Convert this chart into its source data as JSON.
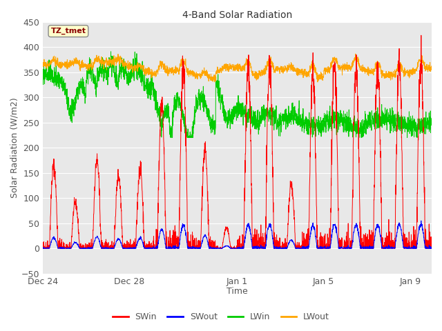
{
  "title": "4-Band Solar Radiation",
  "xlabel": "Time",
  "ylabel": "Solar Radiation (W/m2)",
  "ylim": [
    -50,
    450
  ],
  "yticks": [
    -50,
    0,
    50,
    100,
    150,
    200,
    250,
    300,
    350,
    400,
    450
  ],
  "bg_color": "#e8e8e8",
  "fig_color": "#ffffff",
  "annotation_text": "TZ_tmet",
  "annotation_color": "#8b0000",
  "annotation_bg": "#ffffcc",
  "legend_entries": [
    "SWin",
    "SWout",
    "LWin",
    "LWout"
  ],
  "line_colors": [
    "#ff0000",
    "#0000ff",
    "#00cc00",
    "#ffa500"
  ],
  "x_tick_labels": [
    "Dec 24",
    "Dec 28",
    "Jan 1",
    "Jan 5",
    "Jan 9"
  ],
  "x_tick_positions": [
    0,
    4,
    9,
    13,
    17
  ],
  "total_days": 18,
  "figsize": [
    6.4,
    4.8
  ],
  "dpi": 100
}
